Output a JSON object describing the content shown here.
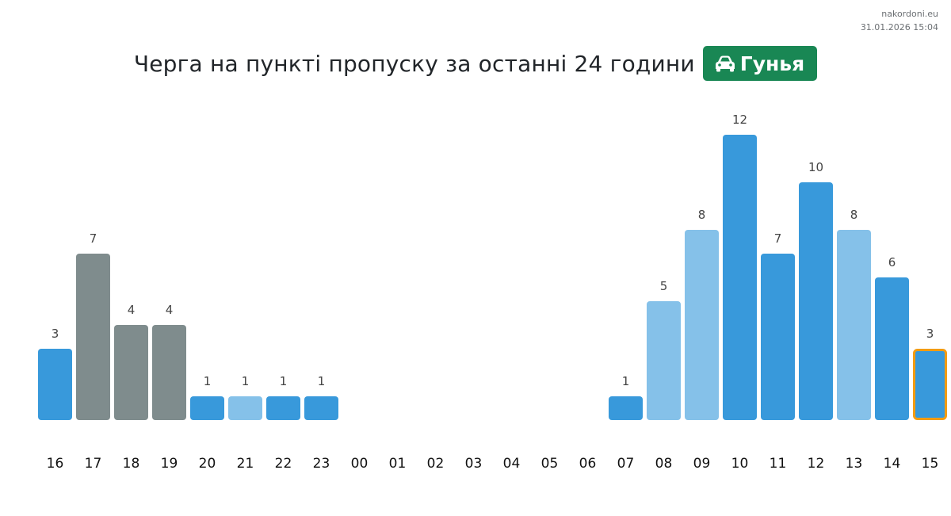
{
  "watermark": {
    "site": "nakordoni.eu",
    "datetime": "31.01.2026 15:04"
  },
  "header": {
    "title": "Черга на пункті пропуску за останні 24 години",
    "checkpoint": "Гунья",
    "checkpoint_icon": "car-icon"
  },
  "colors": {
    "bar_blue": "#3899db",
    "bar_light_blue": "#85c1e9",
    "bar_gray": "#7f8c8d",
    "highlight_outline": "#f39c12",
    "badge_green": "#198754"
  },
  "chart_data": {
    "type": "bar",
    "title": "",
    "xlabel": "",
    "ylabel": "",
    "ylim": [
      0,
      12
    ],
    "grid": false,
    "categories": [
      "16",
      "17",
      "18",
      "19",
      "20",
      "21",
      "22",
      "23",
      "00",
      "01",
      "02",
      "03",
      "04",
      "05",
      "06",
      "07",
      "08",
      "09",
      "10",
      "11",
      "12",
      "13",
      "14",
      "15"
    ],
    "values": [
      3,
      7,
      4,
      4,
      1,
      1,
      1,
      1,
      null,
      null,
      null,
      null,
      null,
      null,
      null,
      1,
      5,
      8,
      12,
      7,
      10,
      8,
      6,
      3
    ],
    "bar_colors": [
      "blue",
      "gray",
      "gray",
      "gray",
      "blue",
      "light_blue",
      "blue",
      "blue",
      null,
      null,
      null,
      null,
      null,
      null,
      null,
      "blue",
      "light_blue",
      "light_blue",
      "blue",
      "blue",
      "blue",
      "light_blue",
      "blue",
      "blue"
    ],
    "highlighted_category": "15"
  }
}
